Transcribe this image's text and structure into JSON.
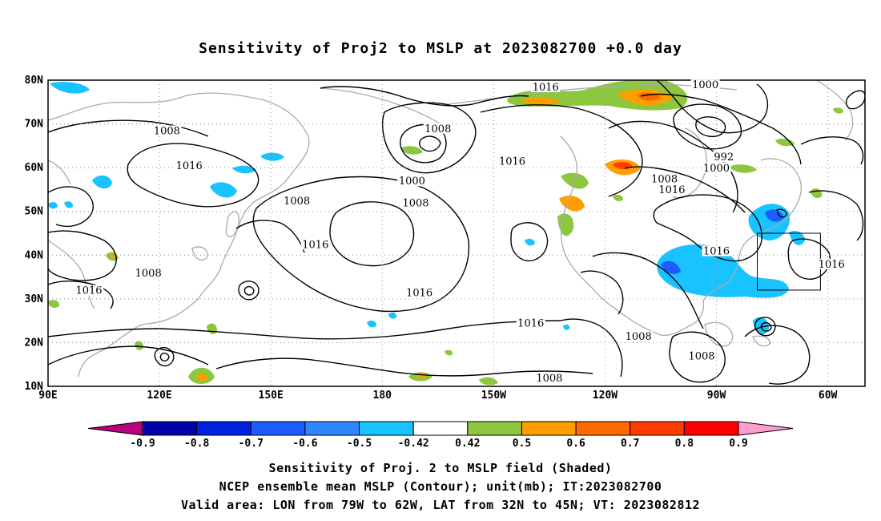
{
  "title": "Sensitivity of Proj2 to MSLP at 2023082700 +0.0 day",
  "lat_labels": [
    "80N",
    "70N",
    "60N",
    "50N",
    "40N",
    "30N",
    "20N",
    "10N"
  ],
  "lon_labels": [
    "90E",
    "120E",
    "150E",
    "180",
    "150W",
    "120W",
    "90W",
    "60W"
  ],
  "contour_labels": [
    {
      "text": "1016",
      "lon": -136,
      "lat": 78
    },
    {
      "text": "1000",
      "lon": -93,
      "lat": 78.5
    },
    {
      "text": "1008",
      "lon": 122,
      "lat": 68
    },
    {
      "text": "1008",
      "lon": -165,
      "lat": 68.5
    },
    {
      "text": "1016",
      "lon": 128,
      "lat": 60
    },
    {
      "text": "1000",
      "lon": -172,
      "lat": 56.5
    },
    {
      "text": "1016",
      "lon": -145,
      "lat": 61
    },
    {
      "text": "992",
      "lon": -88,
      "lat": 62
    },
    {
      "text": "1000",
      "lon": -90,
      "lat": 59.5
    },
    {
      "text": "1008",
      "lon": -104,
      "lat": 57
    },
    {
      "text": "1008",
      "lon": 157,
      "lat": 52
    },
    {
      "text": "1008",
      "lon": -171,
      "lat": 51.5
    },
    {
      "text": "1016",
      "lon": -102,
      "lat": 54.5
    },
    {
      "text": "1016",
      "lon": 162,
      "lat": 42
    },
    {
      "text": "1016",
      "lon": -90,
      "lat": 40.5
    },
    {
      "text": "1016",
      "lon": -59,
      "lat": 37.5
    },
    {
      "text": "1008",
      "lon": 117,
      "lat": 35.5
    },
    {
      "text": "1016",
      "lon": 101,
      "lat": 31.5
    },
    {
      "text": "1016",
      "lon": -170,
      "lat": 31
    },
    {
      "text": "1016",
      "lon": -140,
      "lat": 24
    },
    {
      "text": "1008",
      "lon": -111,
      "lat": 21
    },
    {
      "text": "1008",
      "lon": -94,
      "lat": 16.5
    },
    {
      "text": "1008",
      "lon": -135,
      "lat": 11.5
    }
  ],
  "colorbar": {
    "colors": [
      "#b9007d",
      "#0000a8",
      "#0020e0",
      "#1e5cff",
      "#2f86ff",
      "#19c3ff",
      "#ffffff",
      "#8dc63f",
      "#ff9e00",
      "#ff6a00",
      "#ff3c00",
      "#ff0000",
      "#ff9dcf"
    ],
    "labels": [
      "-0.9",
      "-0.8",
      "-0.7",
      "-0.6",
      "-0.5",
      "-0.42",
      "0.42",
      "0.5",
      "0.6",
      "0.7",
      "0.8",
      "0.9"
    ]
  },
  "valid_box": {
    "lon_min": -79,
    "lon_max": -62,
    "lat_min": 32,
    "lat_max": 45
  },
  "captions": {
    "line1": "Sensitivity of Proj. 2 to MSLP field (Shaded)",
    "line2": "NCEP ensemble mean MSLP (Contour); unit(mb); IT:2023082700",
    "line3": "Valid area: LON from 79W to 62W, LAT from 32N to 45N; VT: 2023082812"
  }
}
